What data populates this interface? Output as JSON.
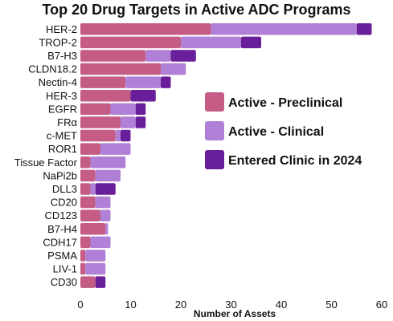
{
  "chart_data": {
    "type": "bar",
    "orientation": "horizontal",
    "stacked": true,
    "title": "Top 20 Drug Targets in Active ADC Programs",
    "xlabel": "Number of Assets",
    "ylabel": "",
    "xlim": [
      0,
      60
    ],
    "xticks": [
      0,
      10,
      20,
      30,
      40,
      50,
      60
    ],
    "grid": false,
    "legend_position": "right",
    "categories": [
      "HER-2",
      "TROP-2",
      "B7-H3",
      "CLDN18.2",
      "Nectin-4",
      "HER-3",
      "EGFR",
      "FRα",
      "c-MET",
      "ROR1",
      "Tissue Factor",
      "NaPi2b",
      "DLL3",
      "CD20",
      "CD123",
      "B7-H4",
      "CDH17",
      "PSMA",
      "LIV-1",
      "CD30"
    ],
    "series": [
      {
        "name": "Active - Preclinical",
        "color": "#c45c86",
        "values": [
          26,
          20,
          13,
          16,
          9,
          10,
          6,
          8,
          7,
          4,
          2,
          3,
          2,
          3,
          4,
          5,
          2,
          1,
          1,
          3
        ]
      },
      {
        "name": "Active - Clinical",
        "color": "#b07fd6",
        "values": [
          29,
          12,
          5,
          5,
          7,
          0,
          5,
          3,
          1,
          6,
          7,
          5,
          1,
          3,
          2,
          0.5,
          4,
          4,
          4,
          0
        ]
      },
      {
        "name": "Entered Clinic in 2024",
        "color": "#6a1f9a",
        "values": [
          3,
          4,
          5,
          0,
          2,
          5,
          2,
          2,
          2,
          0,
          0,
          0,
          4,
          0,
          0,
          0,
          0,
          0,
          0,
          2
        ]
      }
    ]
  }
}
